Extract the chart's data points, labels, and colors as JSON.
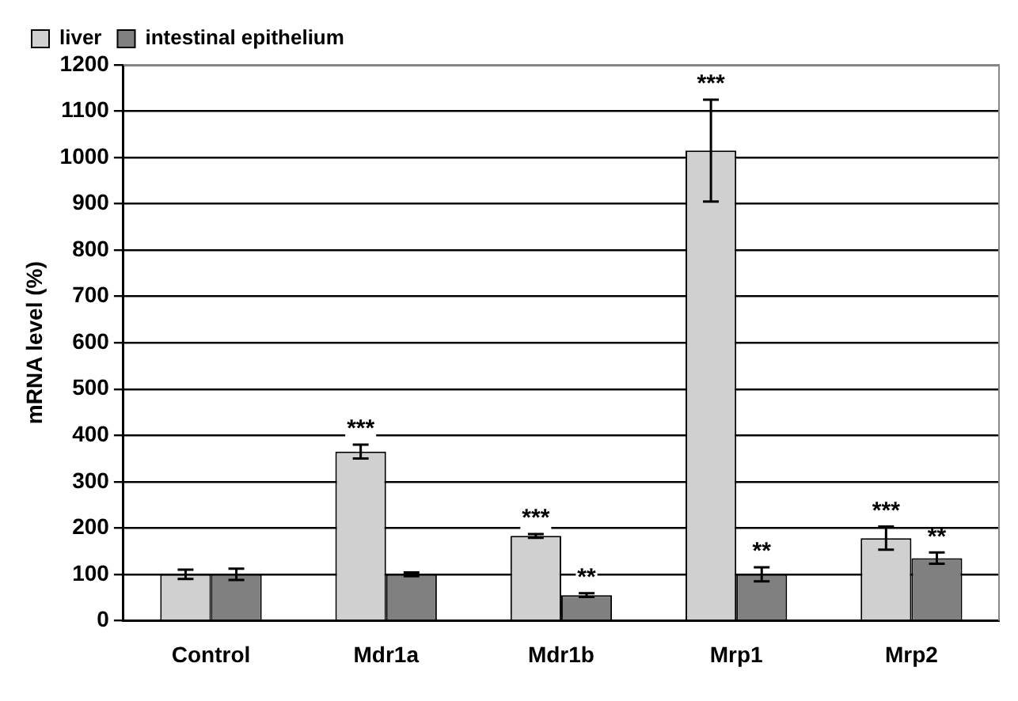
{
  "chart_data": {
    "type": "bar",
    "ylabel": "mRNA level (%)",
    "categories": [
      "Control",
      "Mdr1a",
      "Mdr1b",
      "Mrp1",
      "Mrp2"
    ],
    "series": [
      {
        "name": "liver",
        "color": "#d0d0d0",
        "values": [
          100,
          365,
          183,
          1015,
          178
        ],
        "errors": [
          10,
          15,
          4,
          110,
          25
        ]
      },
      {
        "name": "intestinal epithelium",
        "color": "#808080",
        "values": [
          100,
          100,
          55,
          100,
          135
        ],
        "errors": [
          12,
          4,
          4,
          15,
          12
        ]
      }
    ],
    "ylim": [
      0,
      1200
    ],
    "yticks": [
      0,
      100,
      200,
      300,
      400,
      500,
      600,
      700,
      800,
      900,
      1000,
      1100,
      1200
    ],
    "grid": "y",
    "legend": "top left",
    "annotations": [
      {
        "text": "***",
        "x": "Mdr1a",
        "y": 365
      },
      {
        "text": "***",
        "x": "Mdr1b",
        "y": 183
      },
      {
        "text": "**",
        "x": "Mdr1b",
        "y": 55
      },
      {
        "text": "***",
        "x": "Mrp1",
        "y": 1015
      },
      {
        "text": "**",
        "x": "Mrp1",
        "y": 100
      },
      {
        "text": "***",
        "x": "Mrp2",
        "y": 178
      },
      {
        "text": "**",
        "x": "Mrp2",
        "y": 135
      }
    ]
  }
}
